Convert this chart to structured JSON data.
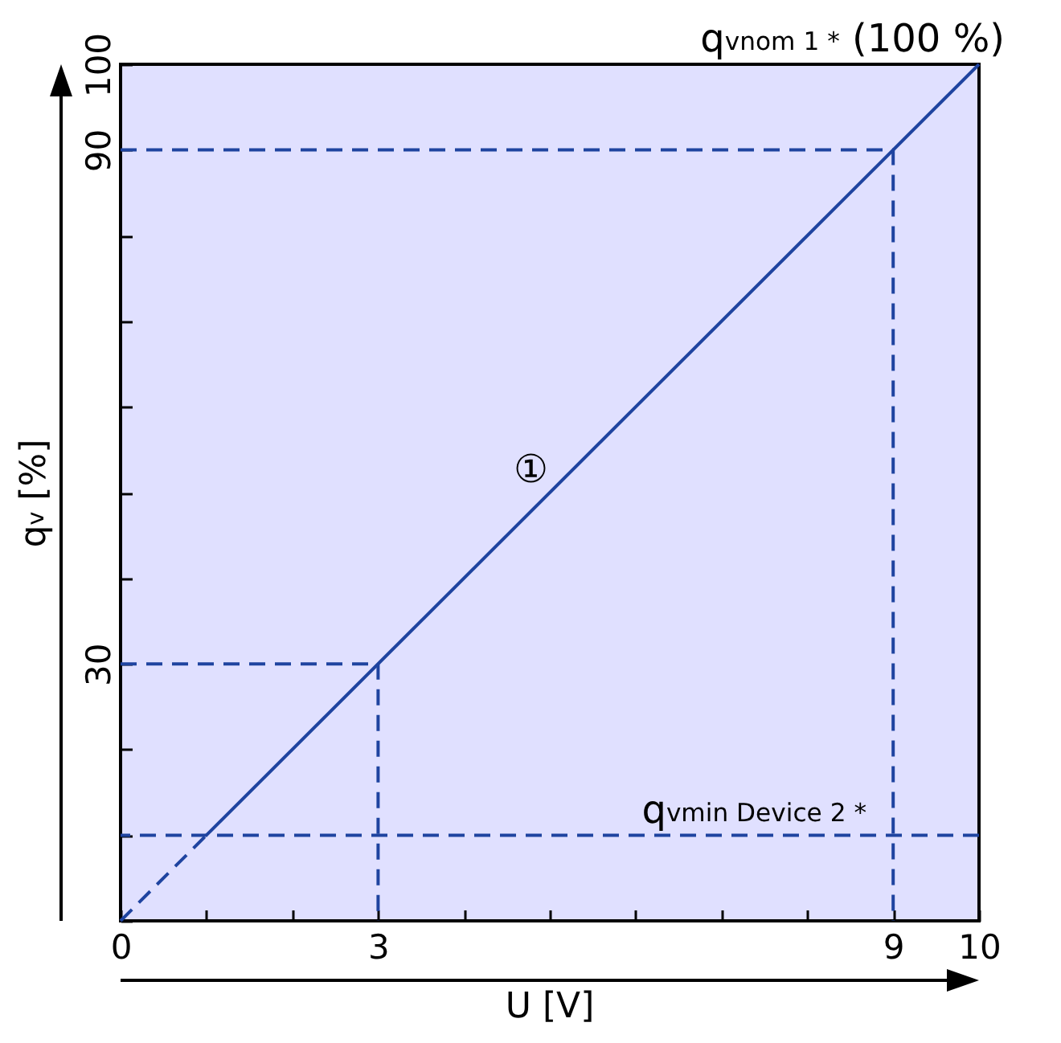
{
  "chart_data": {
    "type": "line",
    "xlabel": "U [V]",
    "ylabel": "q$_{v}$ [%]",
    "xlim": [
      0,
      10
    ],
    "ylim": [
      0,
      100
    ],
    "xticks": [
      0,
      {
        "value": 1,
        "label": null
      },
      {
        "value": 2,
        "label": null
      },
      3,
      {
        "value": 4,
        "label": null
      },
      {
        "value": 5,
        "label": null
      },
      {
        "value": 6,
        "label": null
      },
      {
        "value": 7,
        "label": null
      },
      {
        "value": 8,
        "label": null
      },
      9,
      10
    ],
    "yticks": [
      {
        "value": 0,
        "label": null
      },
      {
        "value": 10,
        "label": null
      },
      {
        "value": 20,
        "label": null
      },
      30,
      {
        "value": 40,
        "label": null
      },
      {
        "value": 50,
        "label": null
      },
      {
        "value": 60,
        "label": null
      },
      {
        "value": 70,
        "label": null
      },
      {
        "value": 80,
        "label": null
      },
      90,
      100
    ],
    "series": [
      {
        "color": "#1f44a0",
        "line_style": "dashed",
        "x": [
          0,
          1
        ],
        "values": [
          0,
          10
        ]
      },
      {
        "color": "#1f44a0",
        "line_style": "solid",
        "x": [
          1,
          10
        ],
        "values": [
          10,
          100
        ]
      },
      {
        "color": "#1f44a0",
        "line_style": "dashed",
        "x": [
          0,
          3,
          3
        ],
        "values": [
          30,
          30,
          0
        ]
      },
      {
        "color": "#1f44a0",
        "line_style": "dashed",
        "x": [
          0,
          9,
          9
        ],
        "values": [
          90,
          90,
          0
        ]
      }
    ],
    "ref_lines": [
      {
        "axis": "y",
        "value": 10,
        "label": "q$_{vmin Device 2 *}$",
        "color": "#1f44a0",
        "line_style": "dashed"
      }
    ],
    "annotations": [
      {
        "text": "q$_{vnom 1 *}$ (100 %)",
        "x": 10,
        "y": 100
      },
      "①"
    ],
    "grid": false
  }
}
